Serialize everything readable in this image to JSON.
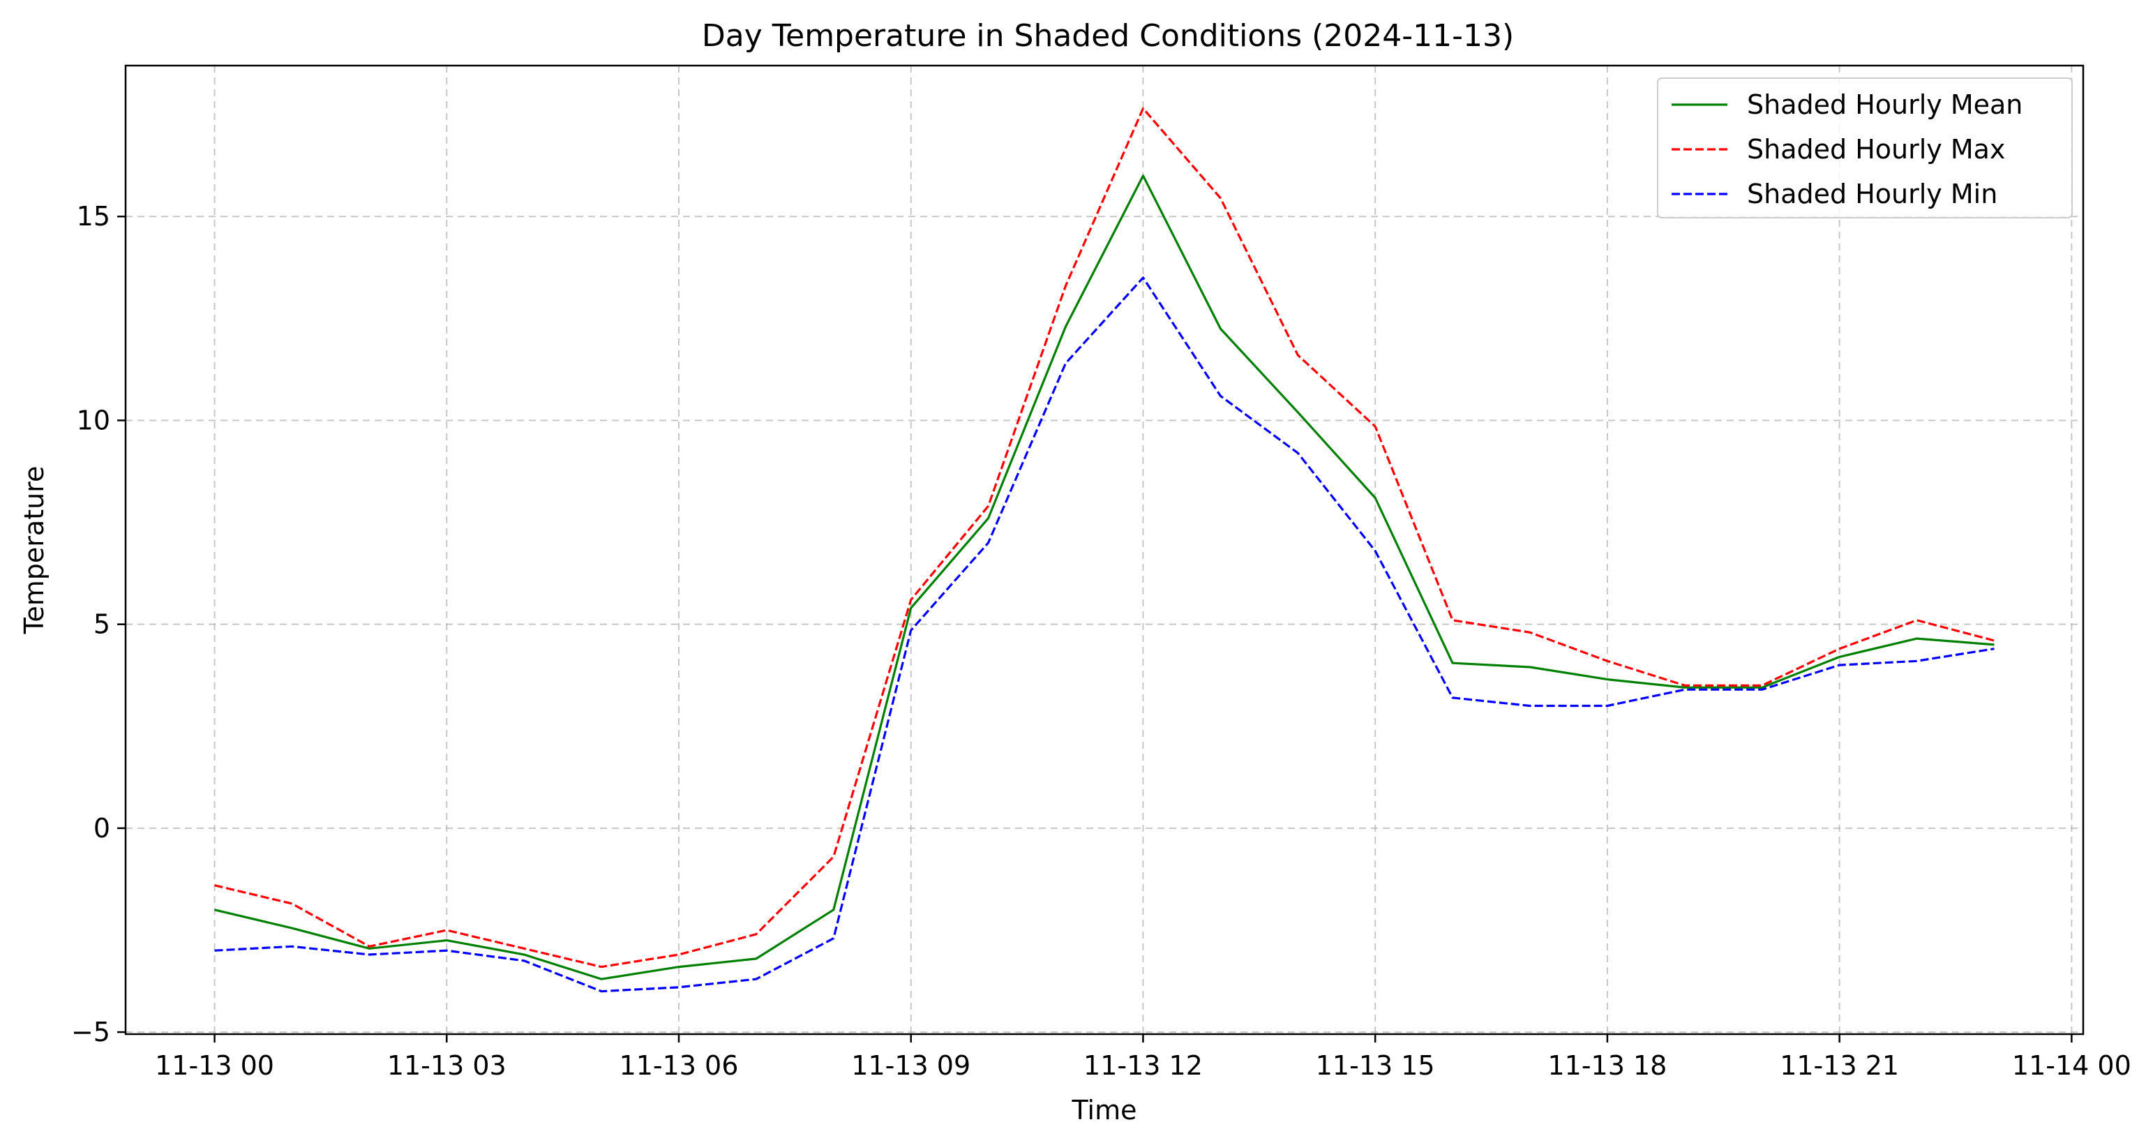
{
  "chart_data": {
    "type": "line",
    "title": "Day Temperature in Shaded Conditions (2024-11-13)",
    "xlabel": "Time",
    "ylabel": "Temperature",
    "x": [
      "11-13 00",
      "11-13 01",
      "11-13 02",
      "11-13 03",
      "11-13 04",
      "11-13 05",
      "11-13 06",
      "11-13 07",
      "11-13 08",
      "11-13 09",
      "11-13 10",
      "11-13 11",
      "11-13 12",
      "11-13 13",
      "11-13 14",
      "11-13 15",
      "11-13 16",
      "11-13 17",
      "11-13 18",
      "11-13 19",
      "11-13 20",
      "11-13 21",
      "11-13 22",
      "11-13 23"
    ],
    "xlim_hours": [
      -1.15,
      24.15
    ],
    "ylim": [
      -5.05,
      18.7
    ],
    "x_ticks": [
      {
        "hour": 0,
        "label": "11-13 00"
      },
      {
        "hour": 3,
        "label": "11-13 03"
      },
      {
        "hour": 6,
        "label": "11-13 06"
      },
      {
        "hour": 9,
        "label": "11-13 09"
      },
      {
        "hour": 12,
        "label": "11-13 12"
      },
      {
        "hour": 15,
        "label": "11-13 15"
      },
      {
        "hour": 18,
        "label": "11-13 18"
      },
      {
        "hour": 21,
        "label": "11-13 21"
      },
      {
        "hour": 24,
        "label": "11-14 00"
      }
    ],
    "y_ticks": [
      {
        "value": -5,
        "label": "−5"
      },
      {
        "value": 0,
        "label": "0"
      },
      {
        "value": 5,
        "label": "5"
      },
      {
        "value": 10,
        "label": "10"
      },
      {
        "value": 15,
        "label": "15"
      }
    ],
    "grid": true,
    "legend_position": "top-right",
    "series": [
      {
        "name": "Shaded Hourly Mean",
        "color": "#008000",
        "dash": "solid",
        "values": [
          -2.0,
          -2.45,
          -2.95,
          -2.75,
          -3.1,
          -3.7,
          -3.4,
          -3.2,
          -2.0,
          5.4,
          7.6,
          12.3,
          16.0,
          12.25,
          10.2,
          8.1,
          4.05,
          3.95,
          3.65,
          3.45,
          3.45,
          4.2,
          4.65,
          4.5
        ]
      },
      {
        "name": "Shaded Hourly Max",
        "color": "#ff0000",
        "dash": "dashed",
        "values": [
          -1.4,
          -1.85,
          -2.9,
          -2.5,
          -2.95,
          -3.4,
          -3.1,
          -2.6,
          -0.7,
          5.6,
          7.9,
          13.3,
          17.65,
          15.45,
          11.6,
          9.85,
          5.1,
          4.8,
          4.1,
          3.5,
          3.5,
          4.4,
          5.1,
          4.6
        ]
      },
      {
        "name": "Shaded Hourly Min",
        "color": "#0000ff",
        "dash": "dashed",
        "values": [
          -3.0,
          -2.9,
          -3.1,
          -3.0,
          -3.25,
          -4.0,
          -3.9,
          -3.7,
          -2.7,
          4.85,
          7.0,
          11.4,
          13.5,
          10.6,
          9.2,
          6.8,
          3.2,
          3.0,
          3.0,
          3.4,
          3.4,
          4.0,
          4.1,
          4.4
        ]
      }
    ]
  }
}
